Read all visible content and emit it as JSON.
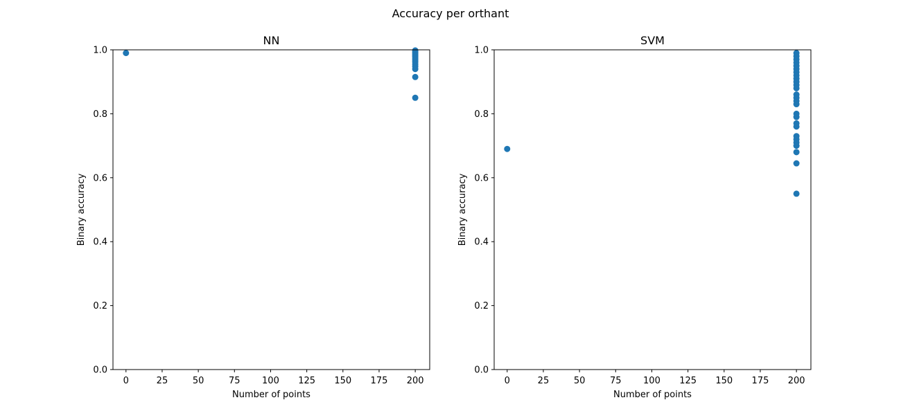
{
  "figure": {
    "title": "Accuracy per orthant"
  },
  "chart_data": [
    {
      "type": "scatter",
      "title": "NN",
      "xlabel": "Number of points",
      "ylabel": "Binary accuracy",
      "xlim": [
        -9,
        210
      ],
      "ylim": [
        0,
        1
      ],
      "xticks": [
        0,
        25,
        50,
        75,
        100,
        125,
        150,
        175,
        200
      ],
      "yticks": [
        0.0,
        0.2,
        0.4,
        0.6,
        0.8,
        1.0
      ],
      "ytick_labels": [
        "0.0",
        "0.2",
        "0.4",
        "0.6",
        "0.8",
        "1.0"
      ],
      "grid": false,
      "color": "#1f77b4",
      "points": [
        {
          "x": 0,
          "y": 0.99
        },
        {
          "x": 200,
          "y": 0.998
        },
        {
          "x": 200,
          "y": 0.994
        },
        {
          "x": 200,
          "y": 0.99
        },
        {
          "x": 200,
          "y": 0.986
        },
        {
          "x": 200,
          "y": 0.982
        },
        {
          "x": 200,
          "y": 0.978
        },
        {
          "x": 200,
          "y": 0.973
        },
        {
          "x": 200,
          "y": 0.968
        },
        {
          "x": 200,
          "y": 0.962
        },
        {
          "x": 200,
          "y": 0.955
        },
        {
          "x": 200,
          "y": 0.948
        },
        {
          "x": 200,
          "y": 0.94
        },
        {
          "x": 200,
          "y": 0.915
        },
        {
          "x": 200,
          "y": 0.85
        }
      ]
    },
    {
      "type": "scatter",
      "title": "SVM",
      "xlabel": "Number of points",
      "ylabel": "Binary accuracy",
      "xlim": [
        -9,
        210
      ],
      "ylim": [
        0,
        1
      ],
      "xticks": [
        0,
        25,
        50,
        75,
        100,
        125,
        150,
        175,
        200
      ],
      "yticks": [
        0.0,
        0.2,
        0.4,
        0.6,
        0.8,
        1.0
      ],
      "ytick_labels": [
        "0.0",
        "0.2",
        "0.4",
        "0.6",
        "0.8",
        "1.0"
      ],
      "grid": false,
      "color": "#1f77b4",
      "points": [
        {
          "x": 0,
          "y": 0.69
        },
        {
          "x": 200,
          "y": 0.99
        },
        {
          "x": 200,
          "y": 0.98
        },
        {
          "x": 200,
          "y": 0.97
        },
        {
          "x": 200,
          "y": 0.96
        },
        {
          "x": 200,
          "y": 0.95
        },
        {
          "x": 200,
          "y": 0.94
        },
        {
          "x": 200,
          "y": 0.93
        },
        {
          "x": 200,
          "y": 0.92
        },
        {
          "x": 200,
          "y": 0.91
        },
        {
          "x": 200,
          "y": 0.9
        },
        {
          "x": 200,
          "y": 0.89
        },
        {
          "x": 200,
          "y": 0.88
        },
        {
          "x": 200,
          "y": 0.86
        },
        {
          "x": 200,
          "y": 0.85
        },
        {
          "x": 200,
          "y": 0.84
        },
        {
          "x": 200,
          "y": 0.83
        },
        {
          "x": 200,
          "y": 0.8
        },
        {
          "x": 200,
          "y": 0.79
        },
        {
          "x": 200,
          "y": 0.77
        },
        {
          "x": 200,
          "y": 0.76
        },
        {
          "x": 200,
          "y": 0.73
        },
        {
          "x": 200,
          "y": 0.72
        },
        {
          "x": 200,
          "y": 0.71
        },
        {
          "x": 200,
          "y": 0.7
        },
        {
          "x": 200,
          "y": 0.68
        },
        {
          "x": 200,
          "y": 0.645
        },
        {
          "x": 200,
          "y": 0.55
        }
      ]
    }
  ]
}
